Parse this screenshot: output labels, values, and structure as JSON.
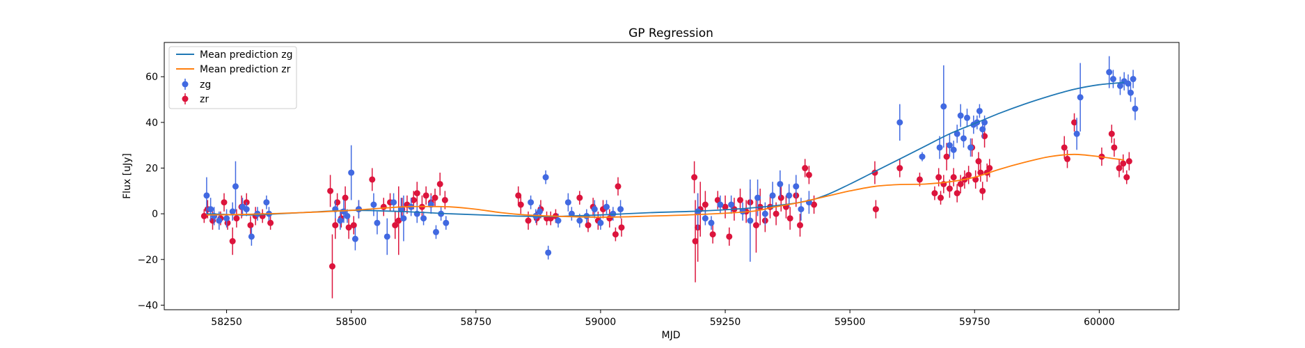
{
  "chart_data": {
    "type": "scatter",
    "title": "GP Regression",
    "xlabel": "MJD",
    "ylabel": "Flux [uJy]",
    "xlim": [
      58125,
      60160
    ],
    "ylim": [
      -42,
      75
    ],
    "x_ticks": [
      58250,
      58500,
      58750,
      59000,
      59250,
      59500,
      59750,
      60000
    ],
    "y_ticks": [
      -40,
      -20,
      0,
      20,
      40,
      60
    ],
    "grid": false,
    "legend_position": "upper-left",
    "series": [
      {
        "name": "Mean prediction zg",
        "kind": "line",
        "color": "#1f77b4",
        "x": [
          58210,
          58300,
          58400,
          58500,
          58600,
          58700,
          58800,
          58900,
          59000,
          59100,
          59200,
          59300,
          59400,
          59450,
          59500,
          59550,
          59600,
          59650,
          59700,
          59750,
          59800,
          59850,
          59900,
          59950,
          60000,
          60050
        ],
        "y": [
          0.0,
          -0.5,
          0.5,
          1.5,
          1.0,
          0.0,
          -0.8,
          -1.2,
          -0.5,
          0.5,
          1.2,
          2.5,
          5.0,
          8.0,
          13.0,
          18.5,
          24.0,
          29.5,
          35.0,
          39.5,
          44.0,
          48.0,
          51.5,
          54.5,
          56.5,
          57.5
        ]
      },
      {
        "name": "Mean prediction zr",
        "kind": "line",
        "color": "#ff7f0e",
        "x": [
          58210,
          58300,
          58400,
          58500,
          58600,
          58650,
          58700,
          58750,
          58800,
          58850,
          58900,
          59000,
          59100,
          59200,
          59300,
          59350,
          59400,
          59450,
          59500,
          59550,
          59600,
          59650,
          59700,
          59750,
          59800,
          59850,
          59900,
          59950,
          60000,
          60050
        ],
        "y": [
          -0.5,
          -0.2,
          0.5,
          1.5,
          3.0,
          3.2,
          3.0,
          2.0,
          0.5,
          -0.5,
          -1.0,
          -1.5,
          -1.0,
          -0.3,
          1.0,
          3.0,
          5.0,
          7.5,
          10.0,
          12.0,
          12.8,
          13.0,
          14.0,
          16.0,
          19.5,
          22.5,
          25.0,
          26.0,
          25.0,
          23.5
        ]
      },
      {
        "name": "zg",
        "kind": "errorbar",
        "color": "#4169e1",
        "points": [
          [
            58210,
            8,
            8
          ],
          [
            58218,
            2,
            5
          ],
          [
            58225,
            -1,
            4
          ],
          [
            58235,
            -3,
            4
          ],
          [
            58250,
            -2,
            4
          ],
          [
            58262,
            1,
            4
          ],
          [
            58268,
            12,
            11
          ],
          [
            58282,
            3,
            4
          ],
          [
            58290,
            2,
            3
          ],
          [
            58300,
            -10,
            4
          ],
          [
            58312,
            0,
            3
          ],
          [
            58330,
            5,
            3
          ],
          [
            58335,
            0,
            3
          ],
          [
            58468,
            2,
            4
          ],
          [
            58478,
            -3,
            4
          ],
          [
            58485,
            1,
            5
          ],
          [
            58492,
            -1,
            3
          ],
          [
            58500,
            18,
            12
          ],
          [
            58508,
            -11,
            5
          ],
          [
            58515,
            2,
            4
          ],
          [
            58545,
            4,
            5
          ],
          [
            58552,
            -4,
            5
          ],
          [
            58572,
            -10,
            8
          ],
          [
            58585,
            5,
            4
          ],
          [
            58600,
            2,
            5
          ],
          [
            58605,
            -2,
            10
          ],
          [
            58620,
            3,
            4
          ],
          [
            58632,
            0,
            4
          ],
          [
            58645,
            -2,
            3
          ],
          [
            58660,
            4,
            4
          ],
          [
            58670,
            -8,
            3
          ],
          [
            58680,
            0,
            3
          ],
          [
            58690,
            -4,
            3
          ],
          [
            58860,
            5,
            3
          ],
          [
            58870,
            -1,
            3
          ],
          [
            58878,
            1,
            3
          ],
          [
            58890,
            16,
            3
          ],
          [
            58895,
            -17,
            3
          ],
          [
            58915,
            -3,
            3
          ],
          [
            58935,
            5,
            4
          ],
          [
            58942,
            0,
            3
          ],
          [
            58958,
            -3,
            3
          ],
          [
            58972,
            -1,
            3
          ],
          [
            58988,
            2,
            4
          ],
          [
            59000,
            -4,
            3
          ],
          [
            59012,
            3,
            3
          ],
          [
            59025,
            0,
            3
          ],
          [
            59040,
            2,
            4
          ],
          [
            59195,
            1,
            8
          ],
          [
            59210,
            -2,
            3
          ],
          [
            59222,
            -4,
            3
          ],
          [
            59240,
            4,
            4
          ],
          [
            59262,
            4,
            4
          ],
          [
            59285,
            1,
            4
          ],
          [
            59300,
            -3,
            18
          ],
          [
            59315,
            7,
            8
          ],
          [
            59330,
            0,
            5
          ],
          [
            59345,
            8,
            6
          ],
          [
            59360,
            13,
            6
          ],
          [
            59378,
            8,
            5
          ],
          [
            59392,
            12,
            5
          ],
          [
            59402,
            2,
            5
          ],
          [
            59418,
            5,
            5
          ],
          [
            59600,
            40,
            8
          ],
          [
            59645,
            25,
            2
          ],
          [
            59680,
            29,
            5
          ],
          [
            59688,
            47,
            18
          ],
          [
            59700,
            30,
            5
          ],
          [
            59708,
            28,
            4
          ],
          [
            59715,
            35,
            4
          ],
          [
            59722,
            43,
            5
          ],
          [
            59728,
            33,
            4
          ],
          [
            59735,
            42,
            4
          ],
          [
            59742,
            29,
            4
          ],
          [
            59748,
            39,
            4
          ],
          [
            59755,
            40,
            3
          ],
          [
            59760,
            45,
            3
          ],
          [
            59766,
            37,
            4
          ],
          [
            59770,
            40,
            3
          ],
          [
            59955,
            35,
            7
          ],
          [
            59962,
            51,
            15
          ],
          [
            60020,
            62,
            7
          ],
          [
            60028,
            59,
            4
          ],
          [
            60042,
            56,
            4
          ],
          [
            60050,
            58,
            4
          ],
          [
            60058,
            57,
            4
          ],
          [
            60063,
            53,
            4
          ],
          [
            60068,
            59,
            4
          ],
          [
            60072,
            46,
            5
          ]
        ]
      },
      {
        "name": "zr",
        "kind": "errorbar",
        "color": "#dc143c",
        "points": [
          [
            58205,
            -1,
            3
          ],
          [
            58212,
            2,
            4
          ],
          [
            58222,
            -3,
            4
          ],
          [
            58238,
            -2,
            3
          ],
          [
            58245,
            5,
            4
          ],
          [
            58252,
            -4,
            3
          ],
          [
            58262,
            -12,
            6
          ],
          [
            58270,
            -2,
            4
          ],
          [
            58280,
            3,
            5
          ],
          [
            58290,
            5,
            4
          ],
          [
            58298,
            -5,
            4
          ],
          [
            58308,
            -1,
            4
          ],
          [
            58322,
            -1,
            3
          ],
          [
            58338,
            -4,
            3
          ],
          [
            58458,
            10,
            7
          ],
          [
            58462,
            -23,
            14
          ],
          [
            58468,
            -5,
            6
          ],
          [
            58472,
            5,
            4
          ],
          [
            58480,
            -2,
            4
          ],
          [
            58488,
            7,
            5
          ],
          [
            58495,
            -6,
            5
          ],
          [
            58505,
            -5,
            4
          ],
          [
            58515,
            2,
            4
          ],
          [
            58542,
            15,
            5
          ],
          [
            58565,
            3,
            4
          ],
          [
            58578,
            5,
            4
          ],
          [
            58588,
            -5,
            6
          ],
          [
            58595,
            -3,
            15
          ],
          [
            58602,
            2,
            5
          ],
          [
            58612,
            4,
            4
          ],
          [
            58625,
            6,
            4
          ],
          [
            58632,
            9,
            5
          ],
          [
            58642,
            3,
            5
          ],
          [
            58650,
            8,
            4
          ],
          [
            58660,
            5,
            4
          ],
          [
            58668,
            7,
            4
          ],
          [
            58678,
            13,
            5
          ],
          [
            58688,
            6,
            4
          ],
          [
            58835,
            8,
            4
          ],
          [
            58840,
            4,
            4
          ],
          [
            58855,
            -3,
            4
          ],
          [
            58872,
            -2,
            3
          ],
          [
            58880,
            2,
            4
          ],
          [
            58892,
            -2,
            3
          ],
          [
            58900,
            -2,
            3
          ],
          [
            58910,
            -1,
            3
          ],
          [
            58958,
            7,
            3
          ],
          [
            58975,
            -5,
            3
          ],
          [
            58985,
            3,
            4
          ],
          [
            58995,
            -3,
            4
          ],
          [
            59005,
            2,
            4
          ],
          [
            59018,
            -2,
            4
          ],
          [
            59030,
            -9,
            3
          ],
          [
            59035,
            12,
            4
          ],
          [
            59042,
            -6,
            4
          ],
          [
            59188,
            16,
            7
          ],
          [
            59190,
            -12,
            18
          ],
          [
            59195,
            -6,
            15
          ],
          [
            59200,
            2,
            12
          ],
          [
            59210,
            4,
            6
          ],
          [
            59225,
            -9,
            4
          ],
          [
            59235,
            6,
            4
          ],
          [
            59250,
            3,
            5
          ],
          [
            59258,
            -10,
            4
          ],
          [
            59268,
            2,
            5
          ],
          [
            59280,
            6,
            5
          ],
          [
            59292,
            1,
            5
          ],
          [
            59300,
            5,
            6
          ],
          [
            59312,
            -5,
            12
          ],
          [
            59320,
            3,
            8
          ],
          [
            59330,
            -3,
            5
          ],
          [
            59340,
            3,
            5
          ],
          [
            59352,
            0,
            5
          ],
          [
            59362,
            7,
            6
          ],
          [
            59372,
            3,
            5
          ],
          [
            59380,
            -2,
            5
          ],
          [
            59392,
            8,
            5
          ],
          [
            59400,
            -5,
            5
          ],
          [
            59410,
            20,
            4
          ],
          [
            59418,
            17,
            4
          ],
          [
            59428,
            4,
            4
          ],
          [
            59550,
            18,
            5
          ],
          [
            59552,
            2,
            4
          ],
          [
            59600,
            20,
            4
          ],
          [
            59640,
            15,
            3
          ],
          [
            59670,
            9,
            3
          ],
          [
            59678,
            16,
            4
          ],
          [
            59682,
            7,
            3
          ],
          [
            59688,
            13,
            4
          ],
          [
            59694,
            25,
            6
          ],
          [
            59700,
            11,
            4
          ],
          [
            59708,
            16,
            4
          ],
          [
            59715,
            9,
            4
          ],
          [
            59722,
            13,
            4
          ],
          [
            59730,
            15,
            4
          ],
          [
            59738,
            17,
            4
          ],
          [
            59745,
            29,
            4
          ],
          [
            59752,
            15,
            4
          ],
          [
            59758,
            23,
            4
          ],
          [
            59762,
            18,
            4
          ],
          [
            59766,
            10,
            4
          ],
          [
            59770,
            34,
            5
          ],
          [
            59775,
            18,
            4
          ],
          [
            59780,
            20,
            4
          ],
          [
            59930,
            29,
            5
          ],
          [
            59936,
            24,
            4
          ],
          [
            59950,
            40,
            4
          ],
          [
            60005,
            25,
            4
          ],
          [
            60025,
            35,
            4
          ],
          [
            60030,
            29,
            4
          ],
          [
            60040,
            20,
            4
          ],
          [
            60048,
            22,
            4
          ],
          [
            60055,
            16,
            3
          ],
          [
            60060,
            23,
            4
          ]
        ]
      }
    ]
  }
}
